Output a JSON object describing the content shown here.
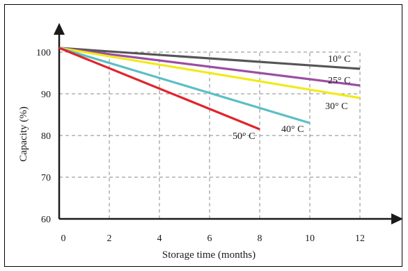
{
  "chart_data": {
    "type": "line",
    "title": "",
    "xlabel": "Storage time (months)",
    "ylabel": "Capacity (%)",
    "x_ticks": [
      0,
      2,
      4,
      6,
      8,
      10,
      12
    ],
    "y_ticks": [
      60,
      70,
      80,
      90,
      100
    ],
    "xlim": [
      0,
      12
    ],
    "ylim": [
      60,
      100
    ],
    "grid": true,
    "series": [
      {
        "name": "10° C",
        "color": "#555555",
        "x": [
          0,
          12
        ],
        "y": [
          101,
          96
        ]
      },
      {
        "name": "25° C",
        "color": "#9b4ea3",
        "x": [
          0,
          12
        ],
        "y": [
          101,
          92
        ]
      },
      {
        "name": "30° C",
        "color": "#f2ea1a",
        "x": [
          0,
          12
        ],
        "y": [
          101,
          89
        ]
      },
      {
        "name": "40° C",
        "color": "#5bbfc4",
        "x": [
          0,
          10
        ],
        "y": [
          101,
          83
        ]
      },
      {
        "name": "50° C",
        "color": "#e0242b",
        "x": [
          0,
          8
        ],
        "y": [
          101,
          81.5
        ]
      }
    ]
  }
}
